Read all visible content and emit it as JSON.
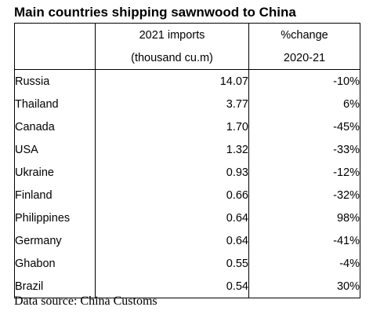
{
  "title": "Main countries shipping sawnwood to China",
  "header": {
    "col2_line1": "2021 imports",
    "col2_line2": "(thousand cu.m)",
    "col3_line1": "%change",
    "col3_line2": "2020-21"
  },
  "rows": [
    {
      "country": "Russia",
      "imports": "14.07",
      "change": "-10%"
    },
    {
      "country": "Thailand",
      "imports": "3.77",
      "change": "6%"
    },
    {
      "country": "Canada",
      "imports": "1.70",
      "change": "-45%"
    },
    {
      "country": "USA",
      "imports": "1.32",
      "change": "-33%"
    },
    {
      "country": "Ukraine",
      "imports": "0.93",
      "change": "-12%"
    },
    {
      "country": "Finland",
      "imports": "0.66",
      "change": "-32%"
    },
    {
      "country": "Philippines",
      "imports": "0.64",
      "change": "98%"
    },
    {
      "country": "Germany",
      "imports": "0.64",
      "change": "-41%"
    },
    {
      "country": "Ghabon",
      "imports": "0.55",
      "change": "-4%"
    },
    {
      "country": "Brazil",
      "imports": "0.54",
      "change": "30%"
    }
  ],
  "source": "Data source: China Customs"
}
